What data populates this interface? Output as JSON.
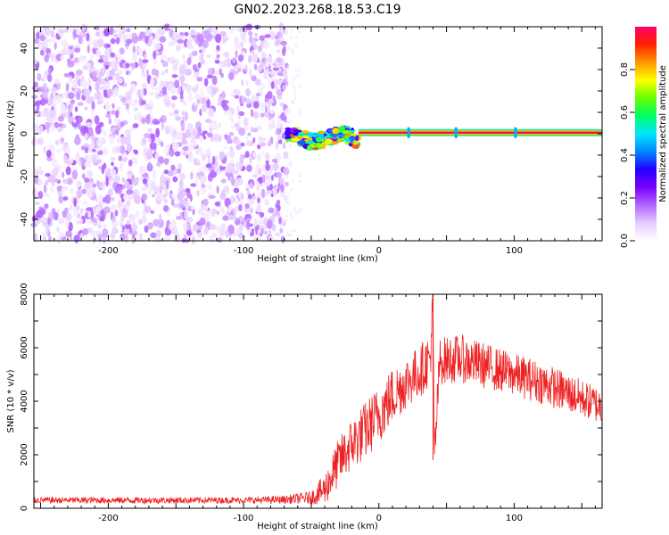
{
  "title": "GN02.2023.268.18.53.C19",
  "chart_data": [
    {
      "type": "heatmap",
      "xlabel": "Height of straight line (km)",
      "ylabel": "Frequency (Hz)",
      "xlim": [
        -255,
        165
      ],
      "ylim": [
        -50,
        50
      ],
      "xticks": [
        -200,
        -100,
        0,
        100
      ],
      "yticks": [
        -40,
        -20,
        0,
        20,
        40
      ],
      "colorbar": {
        "label": "Normalized spectral amplitude",
        "range": [
          0,
          1
        ],
        "ticks": [
          "0.0",
          "0.2",
          "0.4",
          "0.6",
          "0.8"
        ],
        "colors": [
          "#ffffff",
          "#e6ccff",
          "#b266ff",
          "#7a00ff",
          "#2200ff",
          "#0088ff",
          "#00e5ff",
          "#00ff66",
          "#66ff00",
          "#ffff00",
          "#ff9900",
          "#ff2200",
          "#ff0066"
        ]
      },
      "regions": [
        {
          "x_range": [
            -255,
            -68
          ],
          "frequency_range": [
            -50,
            50
          ],
          "amplitude": "broadband noise (~0.05-0.15)"
        },
        {
          "x_range": [
            -68,
            -15
          ],
          "frequency_center": -2,
          "amplitude": "0.2-0.9, wandering tone"
        },
        {
          "x_range": [
            -15,
            165
          ],
          "frequency_center": 0.5,
          "amplitude": "0.8-1.0, steady tone"
        }
      ]
    },
    {
      "type": "line",
      "xlabel": "Height of straight line (km)",
      "ylabel": "SNR (10 * v/v)",
      "xlim": [
        -255,
        165
      ],
      "ylim": [
        0,
        8000
      ],
      "xticks": [
        -200,
        -100,
        0,
        100
      ],
      "yticks": [
        0,
        2000,
        4000,
        6000,
        8000
      ],
      "color": "#ee2222",
      "series": [
        {
          "x": [
            -255,
            -200,
            -150,
            -100,
            -70,
            -50,
            -40,
            -35,
            -30,
            -20,
            -10,
            0,
            10,
            20,
            30,
            38,
            40,
            41,
            45,
            60,
            80,
            100,
            120,
            140,
            155,
            165
          ],
          "values": [
            300,
            300,
            300,
            300,
            320,
            400,
            700,
            1200,
            1700,
            2400,
            2900,
            3500,
            4200,
            4700,
            5100,
            5600,
            7800,
            1800,
            5500,
            5600,
            5300,
            5000,
            4700,
            4300,
            4000,
            3800
          ],
          "noise_amplitude": [
            120,
            120,
            120,
            120,
            150,
            250,
            600,
            800,
            900,
            1000,
            1100,
            1100,
            1100,
            1000,
            1000,
            1000,
            1000,
            900,
            900,
            900,
            850,
            800,
            800,
            750,
            700,
            700
          ]
        }
      ]
    }
  ]
}
